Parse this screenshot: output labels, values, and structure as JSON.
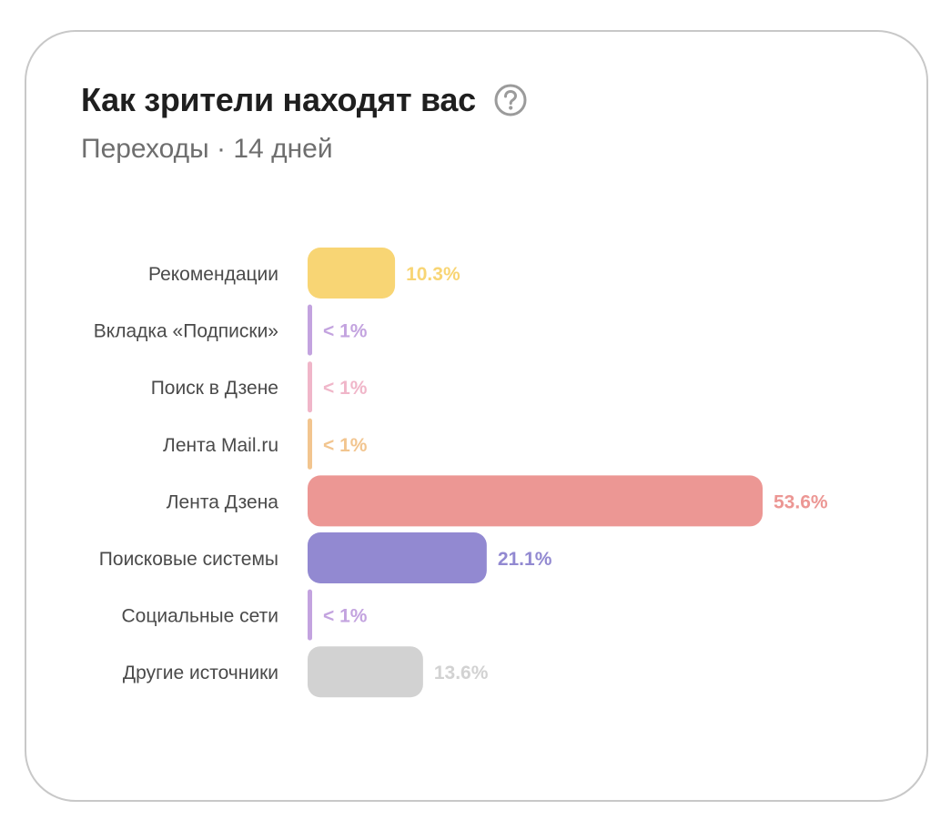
{
  "header": {
    "title": "Как зрители находят вас",
    "subtitle": "Переходы · 14 дней",
    "help_icon": "question-circle-icon"
  },
  "chart_data": {
    "type": "bar",
    "orientation": "horizontal",
    "title": "Как зрители находят вас",
    "subtitle": "Переходы · 14 дней",
    "xlabel": "",
    "ylabel": "",
    "xlim": [
      0,
      53.6
    ],
    "grid": false,
    "legend": "none",
    "categories": [
      "Рекомендации",
      "Вкладка «Подписки»",
      "Поиск в Дзене",
      "Лента Mail.ru",
      "Лента Дзена",
      "Поисковые системы",
      "Социальные сети",
      "Другие источники"
    ],
    "values": [
      10.3,
      0.5,
      0.5,
      0.5,
      53.6,
      21.1,
      0.5,
      13.6
    ],
    "value_labels": [
      "10.3%",
      "< 1%",
      "< 1%",
      "< 1%",
      "53.6%",
      "21.1%",
      "< 1%",
      "13.6%"
    ],
    "colors": [
      "#f8d574",
      "#c3a3df",
      "#f0b6c9",
      "#f2c58f",
      "#ec9794",
      "#9289d1",
      "#c3a3df",
      "#d2d2d2"
    ]
  }
}
